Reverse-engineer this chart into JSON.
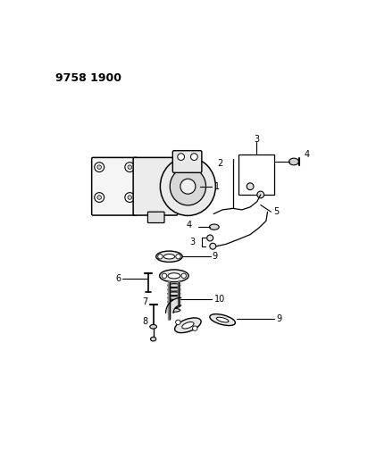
{
  "header": "9758 1900",
  "bg_color": "#ffffff",
  "fg_color": "#000000",
  "fig_width": 4.12,
  "fig_height": 5.33,
  "dpi": 100
}
